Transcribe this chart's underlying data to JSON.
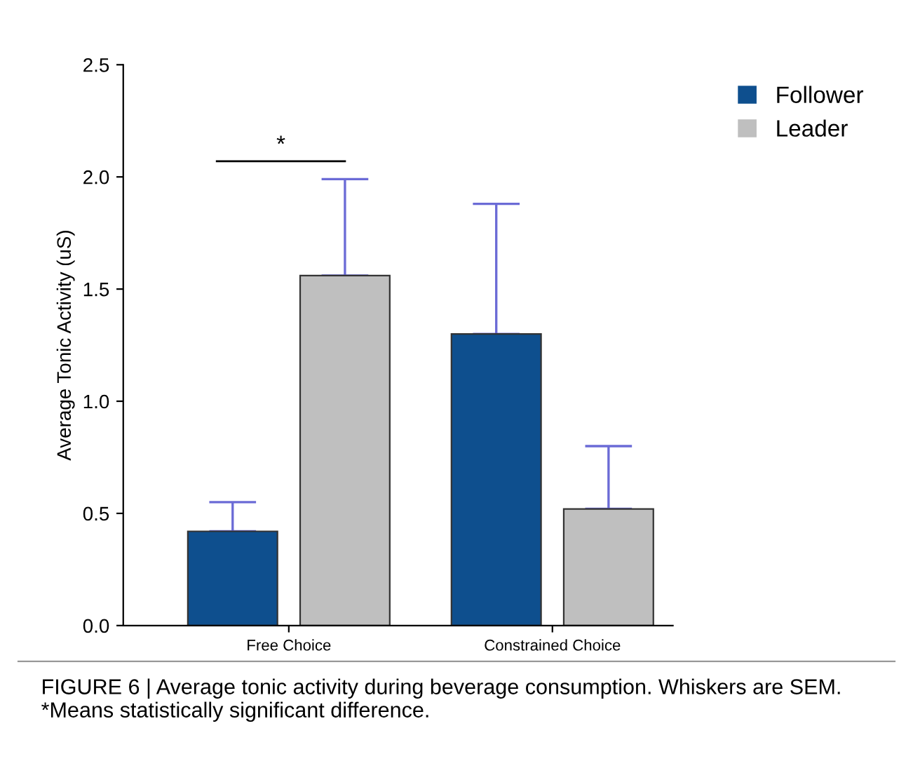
{
  "chart_data": {
    "type": "bar",
    "categories": [
      "Free Choice",
      "Constrained Choice"
    ],
    "ylabel": "Average Tonic Activity (uS)",
    "ylim": [
      0,
      2.5
    ],
    "yticks": [
      {
        "value": 0,
        "label": "0.0"
      },
      0.5,
      {
        "value": 1,
        "label": "1.0"
      },
      1.5,
      {
        "value": 2,
        "label": "2.0"
      },
      2.5
    ],
    "series": [
      {
        "name": "Follower",
        "color": "#0e4f8e",
        "values": [
          0.42,
          1.3
        ],
        "errors": [
          [
            0.42,
            0.55
          ],
          [
            1.3,
            1.88
          ]
        ]
      },
      {
        "name": "Leader",
        "color": "#bfbfbf",
        "values": [
          1.56,
          0.52
        ],
        "errors": [
          [
            1.56,
            1.99
          ],
          [
            0.52,
            0.8
          ]
        ]
      }
    ],
    "legend": "top right",
    "grid": false,
    "annotations": [
      "*",
      "FIGURE 6 | Average tonic activity during beverage consumption. Whiskers are SEM. *Means statistically significant difference."
    ]
  }
}
